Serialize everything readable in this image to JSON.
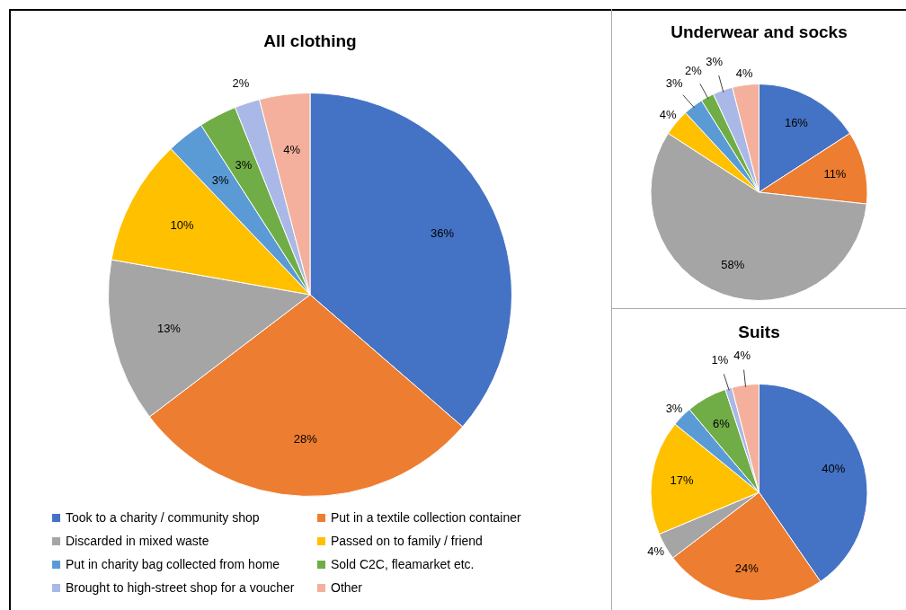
{
  "chart_data": [
    {
      "type": "pie",
      "title": "All clothing",
      "categories": [
        "Took to a charity / community shop",
        "Put in a textile collection container",
        "Discarded in mixed waste",
        "Passed on to family / friend",
        "Put in charity bag collected from home",
        "Sold C2C, fleamarket etc.",
        "Brought to high-street shop for a voucher",
        "Other"
      ],
      "values": [
        36,
        28,
        13,
        10,
        3,
        3,
        2,
        4
      ],
      "value_labels": [
        "36%",
        "28%",
        "13%",
        "10%",
        "3%",
        "3%",
        "2%",
        "4%"
      ],
      "colors": [
        "#4472c4",
        "#ed7d31",
        "#a5a5a5",
        "#ffc000",
        "#5b9bd5",
        "#70ad47",
        "#a9b8e6",
        "#f4b09c"
      ],
      "legend": "bottom"
    },
    {
      "type": "pie",
      "title": "Underwear and socks",
      "categories": [
        null,
        null,
        null,
        null,
        null,
        null,
        null,
        null
      ],
      "values": [
        16,
        11,
        58,
        4,
        3,
        2,
        3,
        4
      ],
      "value_labels": [
        "16%",
        "11%",
        "58%",
        "4%",
        "3%",
        "2%",
        "3%",
        "4%"
      ],
      "colors": [
        "#4472c4",
        "#ed7d31",
        "#a5a5a5",
        "#ffc000",
        "#5b9bd5",
        "#70ad47",
        "#a9b8e6",
        "#f4b09c"
      ]
    },
    {
      "type": "pie",
      "title": "Suits",
      "categories": [
        null,
        null,
        null,
        null,
        null,
        null,
        null,
        null
      ],
      "values": [
        40,
        24,
        4,
        17,
        3,
        6,
        1,
        4
      ],
      "value_labels": [
        "40%",
        "24%",
        "4%",
        "17%",
        "3%",
        "6%",
        "1%",
        "4%"
      ],
      "colors": [
        "#4472c4",
        "#ed7d31",
        "#a5a5a5",
        "#ffc000",
        "#5b9bd5",
        "#70ad47",
        "#a9b8e6",
        "#f4b09c"
      ]
    }
  ]
}
